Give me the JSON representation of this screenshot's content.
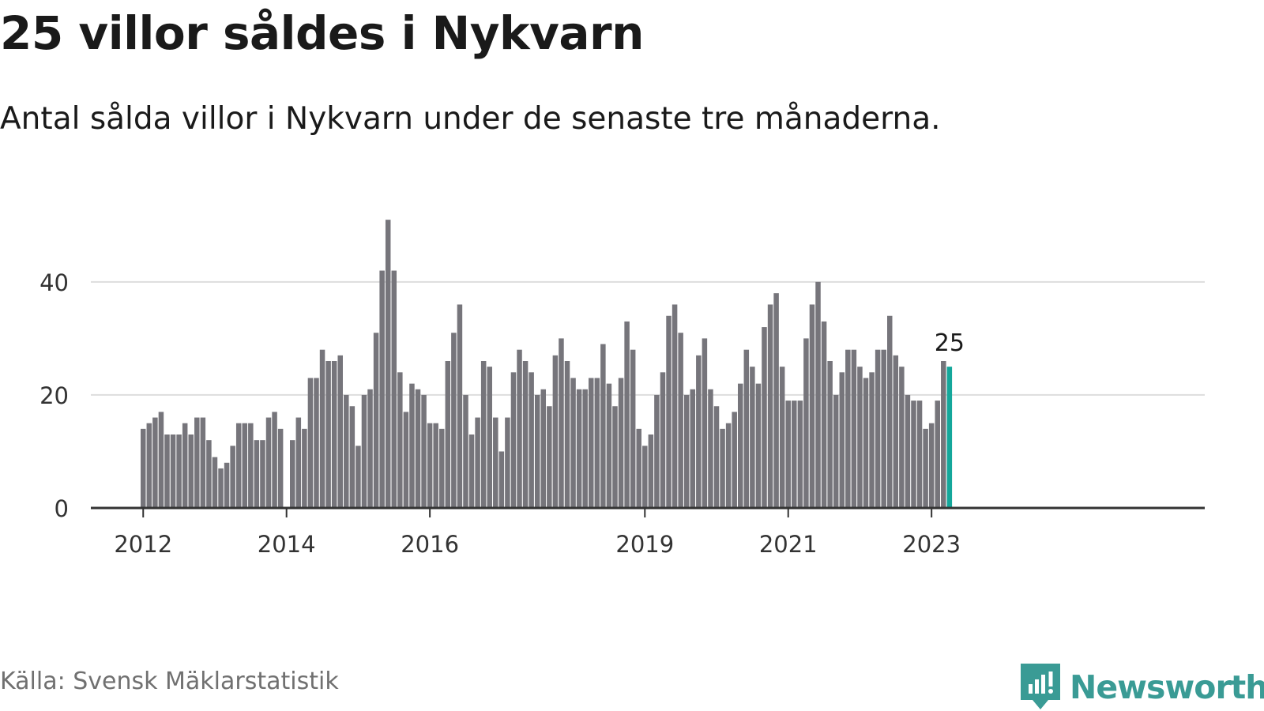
{
  "title": "25 villor såldes i Nykvarn",
  "subtitle": "Antal sålda villor i Nykvarn under de senaste tre månaderna.",
  "source": "Källa: Svensk Mäklarstatistik",
  "brand": {
    "name": "Newsworthy",
    "color": "#3a9b95"
  },
  "colors": {
    "bar": "#76757b",
    "highlight": "#14a79b",
    "grid": "#dddddd",
    "axis": "#333333"
  },
  "chart_data": {
    "type": "bar",
    "title": "25 villor såldes i Nykvarn",
    "xlabel": "",
    "ylabel": "",
    "ylim": [
      0,
      52
    ],
    "yticks": [
      0,
      20,
      40
    ],
    "grid": true,
    "x_start": "2012-01",
    "x_ticks": [
      {
        "label": "2012",
        "index": 0
      },
      {
        "label": "2014",
        "index": 24
      },
      {
        "label": "2016",
        "index": 48
      },
      {
        "label": "2019",
        "index": 84
      },
      {
        "label": "2021",
        "index": 108
      },
      {
        "label": "2023",
        "index": 132
      }
    ],
    "values": [
      14,
      15,
      16,
      17,
      13,
      13,
      13,
      15,
      13,
      16,
      16,
      12,
      9,
      7,
      8,
      11,
      15,
      15,
      15,
      12,
      12,
      16,
      17,
      14,
      0,
      12,
      16,
      14,
      23,
      23,
      28,
      26,
      26,
      27,
      20,
      18,
      11,
      20,
      21,
      31,
      42,
      51,
      42,
      24,
      17,
      22,
      21,
      20,
      15,
      15,
      14,
      26,
      31,
      36,
      20,
      13,
      16,
      26,
      25,
      16,
      10,
      16,
      24,
      28,
      26,
      24,
      20,
      21,
      18,
      27,
      30,
      26,
      23,
      21,
      21,
      23,
      23,
      29,
      22,
      18,
      23,
      33,
      28,
      14,
      11,
      13,
      20,
      24,
      34,
      36,
      31,
      20,
      21,
      27,
      30,
      21,
      18,
      14,
      15,
      17,
      22,
      28,
      25,
      22,
      32,
      36,
      38,
      25,
      19,
      19,
      19,
      30,
      36,
      40,
      33,
      26,
      20,
      24,
      28,
      28,
      25,
      23,
      24,
      28,
      28,
      34,
      27,
      25,
      20,
      19,
      19,
      14,
      15,
      19,
      26,
      25
    ],
    "highlight": {
      "index": 135,
      "value": 25,
      "label": "25"
    }
  }
}
